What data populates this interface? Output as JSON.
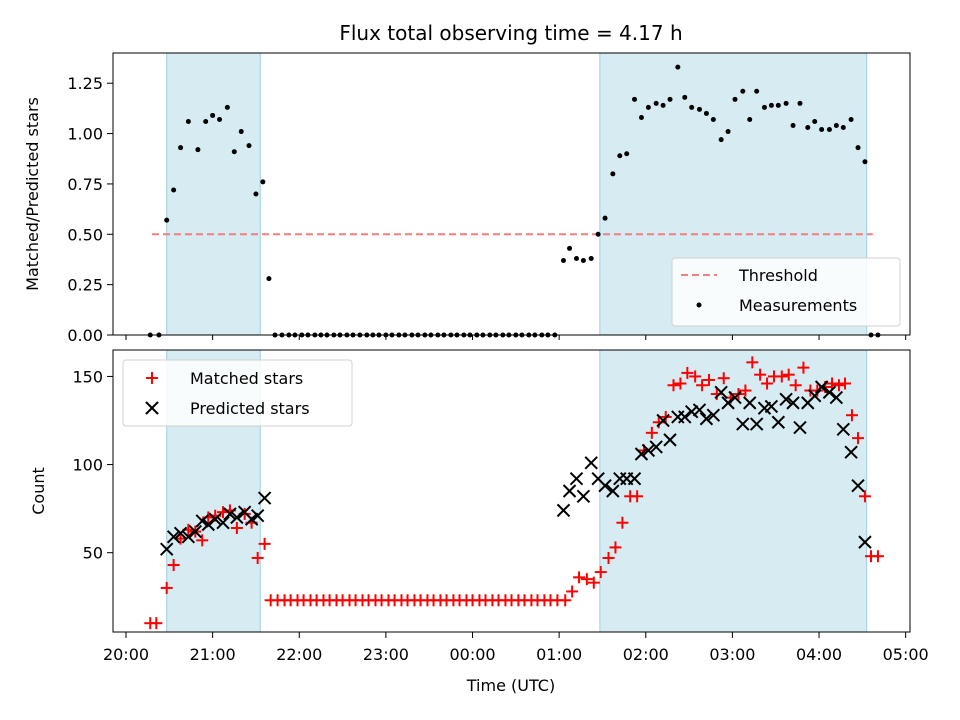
{
  "chart_data": [
    {
      "type": "scatter",
      "title": "Flux total observing time = 4.17 h",
      "xlabel": "",
      "ylabel": "Matched/Predicted stars",
      "ylim": [
        0,
        1.4
      ],
      "yticks": [
        "0.00",
        "0.25",
        "0.50",
        "0.75",
        "1.00",
        "1.25"
      ],
      "xlim_hours": [
        19.85,
        29.05
      ],
      "observing_windows_hours": [
        [
          20.47,
          21.55
        ],
        [
          25.47,
          28.55
        ]
      ],
      "threshold": {
        "name": "Threshold",
        "value": 0.5,
        "x_range_hours": [
          20.3,
          28.62
        ],
        "color": "#f08080"
      },
      "legend": {
        "placement": "bottom-right",
        "entries": [
          "Threshold",
          "Measurements"
        ]
      },
      "series": [
        {
          "name": "Measurements",
          "color": "#000000",
          "x_hours": [
            20.28,
            20.38,
            20.47,
            20.55,
            20.63,
            20.72,
            20.83,
            20.92,
            21.0,
            21.08,
            21.17,
            21.25,
            21.33,
            21.42,
            21.5,
            21.58,
            21.65,
            21.72,
            21.8,
            21.88,
            21.95,
            22.03,
            22.1,
            22.18,
            22.25,
            22.32,
            22.4,
            22.47,
            22.55,
            22.62,
            22.7,
            22.78,
            22.85,
            22.92,
            23.0,
            23.07,
            23.15,
            23.22,
            23.3,
            23.37,
            23.45,
            23.52,
            23.6,
            23.67,
            23.75,
            23.82,
            23.9,
            23.97,
            24.05,
            24.12,
            24.2,
            24.27,
            24.35,
            24.42,
            24.5,
            24.57,
            24.65,
            24.72,
            24.8,
            24.87,
            24.95,
            25.05,
            25.12,
            25.2,
            25.28,
            25.37,
            25.45,
            25.53,
            25.62,
            25.7,
            25.78,
            25.87,
            25.95,
            26.03,
            26.12,
            26.2,
            26.28,
            26.37,
            26.45,
            26.53,
            26.62,
            26.7,
            26.78,
            26.87,
            26.95,
            27.03,
            27.12,
            27.2,
            27.28,
            27.37,
            27.45,
            27.53,
            27.62,
            27.7,
            27.78,
            27.87,
            27.95,
            28.03,
            28.12,
            28.2,
            28.28,
            28.37,
            28.45,
            28.53,
            28.6,
            28.68
          ],
          "values": [
            0,
            0,
            0.57,
            0.72,
            0.93,
            1.06,
            0.92,
            1.06,
            1.09,
            1.07,
            1.13,
            0.91,
            1.01,
            0.94,
            0.7,
            0.76,
            0.28,
            0,
            0,
            0,
            0,
            0,
            0,
            0,
            0,
            0,
            0,
            0,
            0,
            0,
            0,
            0,
            0,
            0,
            0,
            0,
            0,
            0,
            0,
            0,
            0,
            0,
            0,
            0,
            0,
            0,
            0,
            0,
            0,
            0,
            0,
            0,
            0,
            0,
            0,
            0,
            0,
            0,
            0,
            0,
            0,
            0.37,
            0.43,
            0.38,
            0.37,
            0.38,
            0.5,
            0.58,
            0.8,
            0.89,
            0.9,
            1.17,
            1.08,
            1.13,
            1.15,
            1.14,
            1.17,
            1.33,
            1.18,
            1.13,
            1.12,
            1.1,
            1.07,
            0.97,
            1.01,
            1.17,
            1.21,
            1.07,
            1.21,
            1.13,
            1.14,
            1.14,
            1.15,
            1.04,
            1.15,
            1.03,
            1.06,
            1.02,
            1.02,
            1.04,
            1.03,
            1.07,
            0.93,
            0.86,
            0,
            0
          ]
        }
      ]
    },
    {
      "type": "scatter",
      "title": "",
      "xlabel": "Time (UTC)",
      "ylabel": "Count",
      "ylim": [
        5,
        165
      ],
      "yticks": [
        "50",
        "100",
        "150"
      ],
      "xticks": [
        "20:00",
        "21:00",
        "22:00",
        "23:00",
        "00:00",
        "01:00",
        "02:00",
        "03:00",
        "04:00",
        "05:00"
      ],
      "xlim_hours": [
        19.85,
        29.05
      ],
      "observing_windows_hours": [
        [
          20.47,
          21.55
        ],
        [
          25.47,
          28.55
        ]
      ],
      "legend": {
        "placement": "top-left",
        "entries": [
          "Matched stars",
          "Predicted stars"
        ]
      },
      "series": [
        {
          "name": "Matched stars",
          "marker": "+",
          "color": "#ff0000",
          "x_hours": [
            20.28,
            20.35,
            20.47,
            20.55,
            20.63,
            20.72,
            20.8,
            20.88,
            20.95,
            21.03,
            21.12,
            21.2,
            21.28,
            21.37,
            21.45,
            21.52,
            21.6,
            21.67,
            21.75,
            21.83,
            21.9,
            21.98,
            22.05,
            22.13,
            22.2,
            22.28,
            22.35,
            22.43,
            22.5,
            22.58,
            22.65,
            22.73,
            22.8,
            22.88,
            22.95,
            23.03,
            23.1,
            23.18,
            23.25,
            23.33,
            23.4,
            23.48,
            23.55,
            23.63,
            23.7,
            23.78,
            23.85,
            23.93,
            24.0,
            24.08,
            24.15,
            24.23,
            24.3,
            24.38,
            24.45,
            24.53,
            24.6,
            24.68,
            24.75,
            24.83,
            24.9,
            24.98,
            25.07,
            25.15,
            25.23,
            25.32,
            25.4,
            25.48,
            25.57,
            25.65,
            25.73,
            25.82,
            25.9,
            25.98,
            26.07,
            26.15,
            26.23,
            26.32,
            26.4,
            26.48,
            26.57,
            26.65,
            26.73,
            26.82,
            26.9,
            26.98,
            27.07,
            27.15,
            27.23,
            27.32,
            27.4,
            27.48,
            27.57,
            27.65,
            27.73,
            27.82,
            27.9,
            27.98,
            28.07,
            28.15,
            28.23,
            28.3,
            28.38,
            28.45,
            28.53,
            28.6,
            28.68
          ],
          "values": [
            10,
            10,
            30,
            43,
            58,
            63,
            62,
            57,
            70,
            71,
            73,
            74,
            64,
            72,
            67,
            47,
            55,
            23,
            23,
            23,
            23,
            23,
            23,
            23,
            23,
            23,
            23,
            23,
            23,
            23,
            23,
            23,
            23,
            23,
            23,
            23,
            23,
            23,
            23,
            23,
            23,
            23,
            23,
            23,
            23,
            23,
            23,
            23,
            23,
            23,
            23,
            23,
            23,
            23,
            23,
            23,
            23,
            23,
            23,
            23,
            23,
            23,
            23,
            28,
            36,
            35,
            33,
            39,
            47,
            53,
            67,
            82,
            82,
            108,
            118,
            124,
            127,
            145,
            146,
            152,
            150,
            145,
            148,
            140,
            149,
            138,
            140,
            142,
            158,
            151,
            146,
            150,
            150,
            151,
            145,
            155,
            142,
            142,
            144,
            146,
            145,
            146,
            128,
            115,
            82,
            48,
            48
          ]
        },
        {
          "name": "Predicted stars",
          "marker": "x",
          "color": "#000000",
          "x_hours": [
            20.47,
            20.55,
            20.63,
            20.72,
            20.8,
            20.88,
            20.95,
            21.03,
            21.12,
            21.2,
            21.28,
            21.37,
            21.45,
            21.52,
            21.6,
            25.05,
            25.12,
            25.2,
            25.28,
            25.37,
            25.45,
            25.53,
            25.62,
            25.7,
            25.78,
            25.87,
            25.95,
            26.03,
            26.12,
            26.2,
            26.28,
            26.37,
            26.45,
            26.53,
            26.62,
            26.7,
            26.78,
            26.87,
            26.95,
            27.03,
            27.12,
            27.2,
            27.28,
            27.37,
            27.45,
            27.53,
            27.62,
            27.7,
            27.78,
            27.87,
            27.95,
            28.03,
            28.12,
            28.2,
            28.28,
            28.37,
            28.45,
            28.53
          ],
          "values": [
            52,
            59,
            61,
            59,
            62,
            68,
            66,
            69,
            67,
            72,
            70,
            73,
            69,
            71,
            81,
            74,
            85,
            92,
            82,
            101,
            92,
            88,
            85,
            92,
            92,
            92,
            106,
            108,
            110,
            125,
            114,
            127,
            127,
            130,
            131,
            126,
            128,
            141,
            135,
            138,
            123,
            135,
            123,
            132,
            133,
            124,
            137,
            135,
            121,
            135,
            139,
            144,
            141,
            138,
            120,
            107,
            88,
            56
          ]
        }
      ]
    }
  ]
}
